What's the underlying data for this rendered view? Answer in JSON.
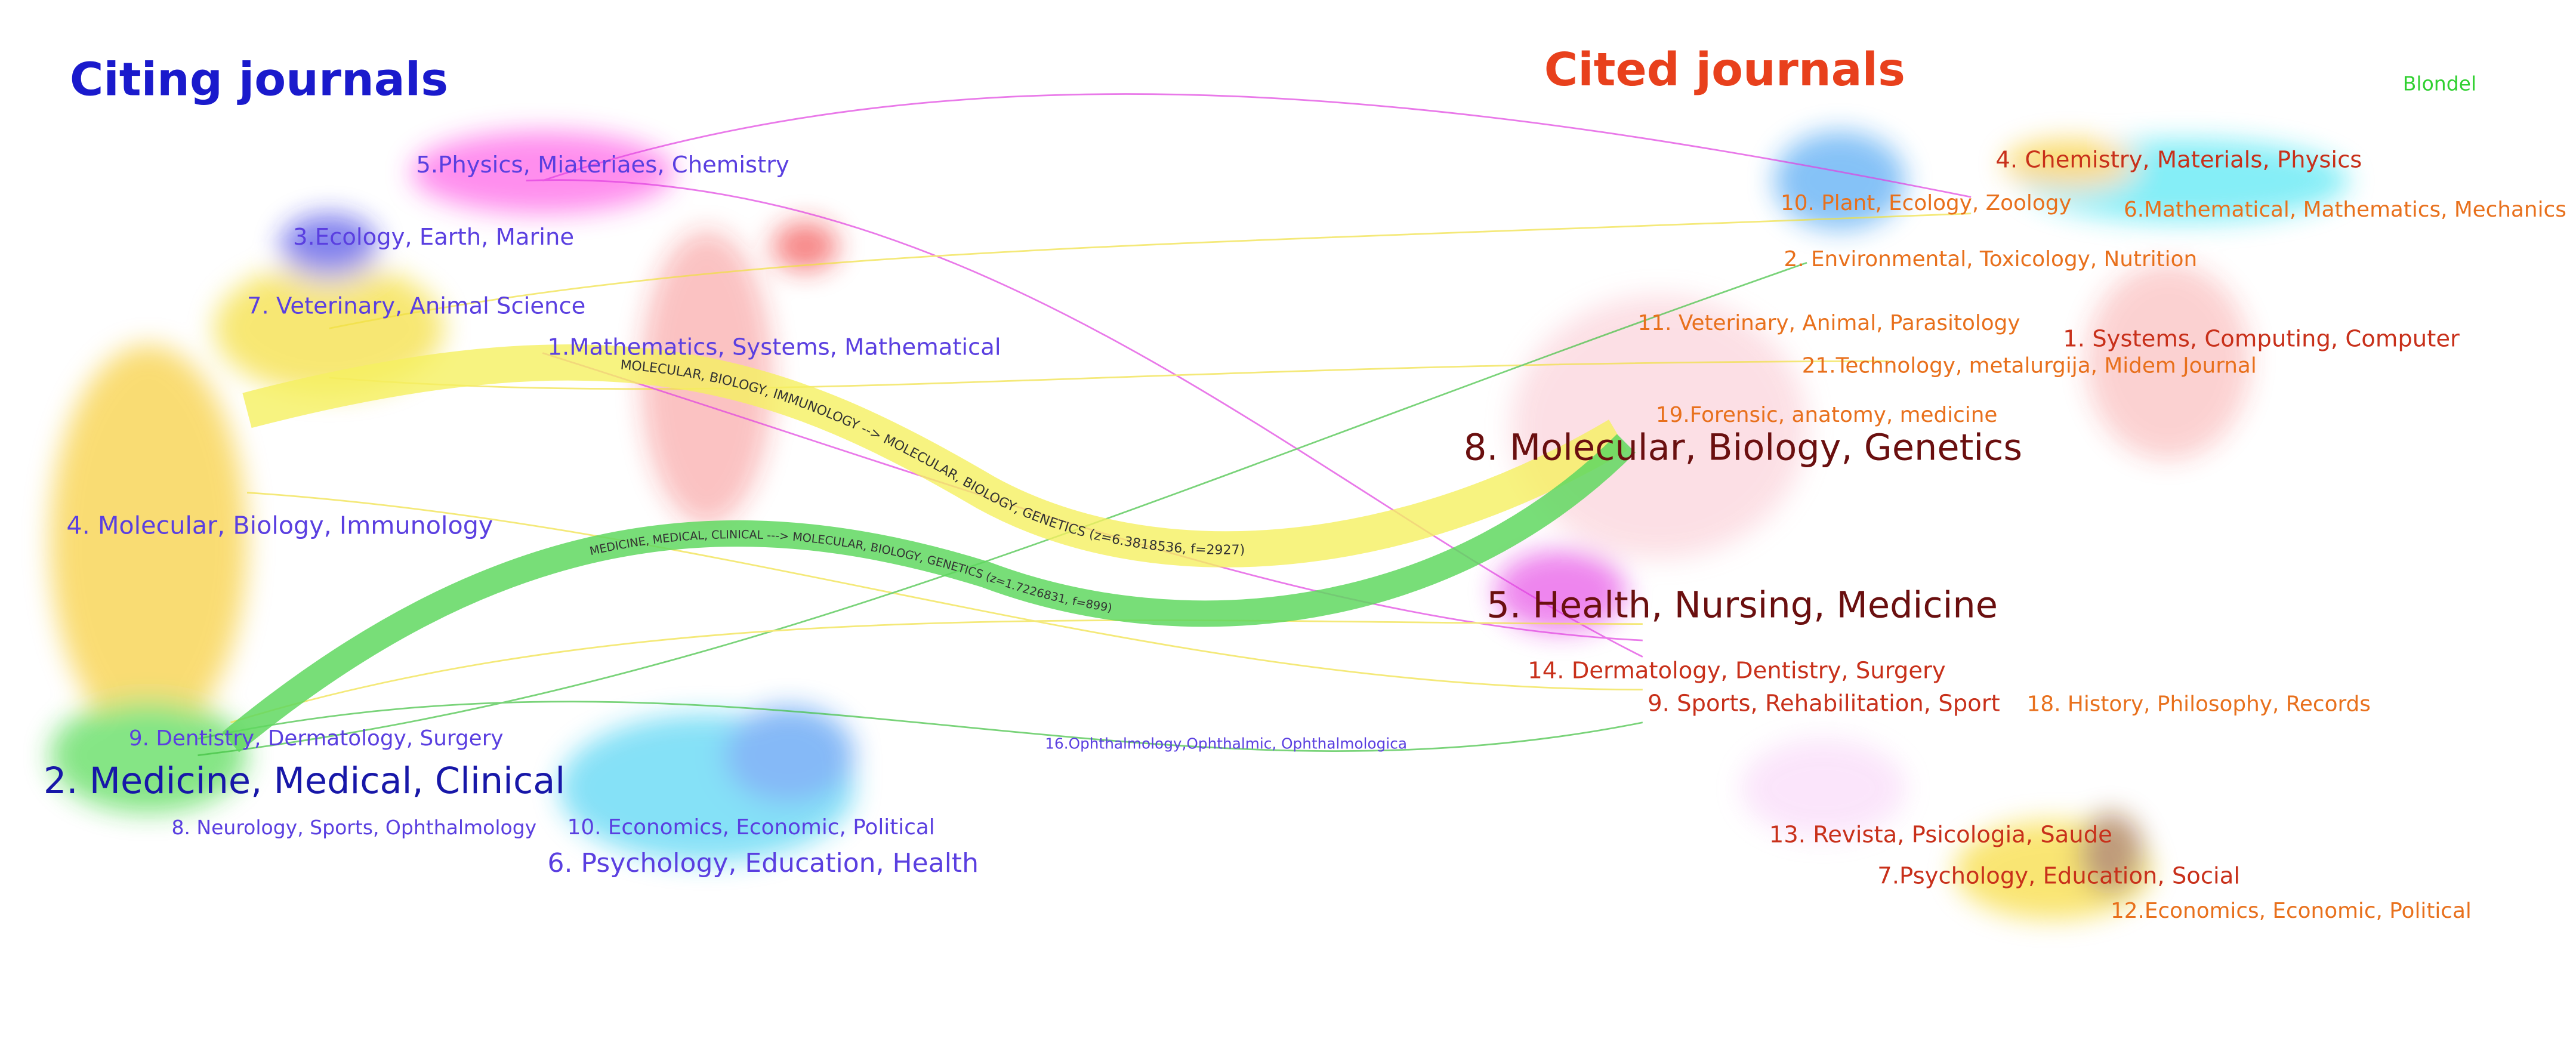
{
  "citing": {
    "title": "Citing journals",
    "labels": [
      "5.Physics, Miateriaes, Chemistry",
      "3.Ecology, Earth, Marine",
      "7. Veterinary, Animal Science",
      "1.Mathematics, Systems, Mathematical",
      "4. Molecular, Biology, Immunology",
      "9. Dentistry, Dermatology, Surgery",
      "2. Medicine, Medical, Clinical",
      "8. Neurology, Sports, Ophthalmology",
      "10. Economics, Economic, Political",
      "6. Psychology, Education, Health",
      "16.Ophthalmology,Ophthalmic, Ophthalmologica"
    ]
  },
  "cited": {
    "title": "Cited journals",
    "labels": [
      "4. Chemistry, Materials, Physics",
      "10. Plant, Ecology, Zoology",
      "6.Mathematical, Mathematics, Mechanics",
      "2. Environmental, Toxicology, Nutrition",
      "11. Veterinary, Animal, Parasitology",
      "1. Systems, Computing, Computer",
      "21.Technology, metalurgija, Midem Journal",
      "19.Forensic, anatomy, medicine",
      "8. Molecular, Biology, Genetics",
      "5. Health, Nursing, Medicine",
      "14. Dermatology, Dentistry, Surgery",
      "9. Sports, Rehabilitation, Sport",
      "18. History, Philosophy, Records",
      "13. Revista, Psicologia, Saude",
      "7.Psychology, Education, Social",
      "12.Economics, Economic, Political"
    ]
  },
  "legend": "Blondel",
  "flows": [
    "MOLECULAR, BIOLOGY, IMMUNOLOGY --> MOLECULAR, BIOLOGY, GENETICS (z=6.3818536, f=2927)",
    "MEDICINE, MEDICAL, CLINICAL ---> MOLECULAR, BIOLOGY, GENETICS (z=1.7226831, f=899)"
  ]
}
